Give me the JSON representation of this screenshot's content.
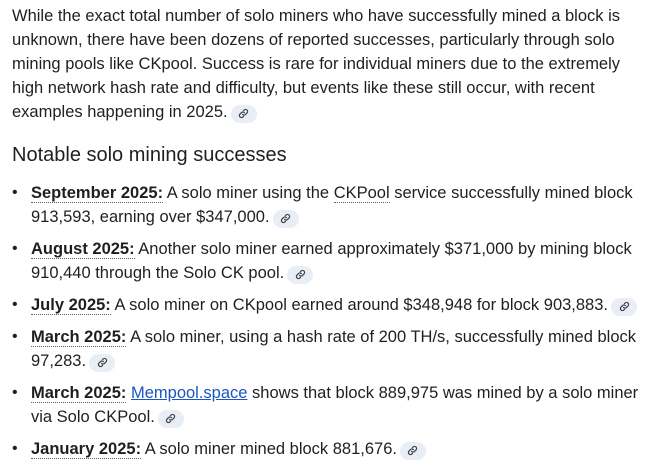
{
  "intro": {
    "text": "While the exact total number of solo miners who have successfully mined a block is unknown, there have been dozens of reported successes, particularly through solo mining pools like CKpool. Success is rare for individual miners due to the extremely high network hash rate and difficulty, but events like these still occur, with recent examples happening in 2025."
  },
  "section": {
    "heading": "Notable solo mining successes"
  },
  "items": [
    {
      "date": "September 2025:",
      "before": " A solo miner using the ",
      "term": "CKPool",
      "after": " service successfully mined block 913,593, earning over $347,000."
    },
    {
      "date": "August 2025:",
      "text": " Another solo miner earned approximately $371,000 by mining block 910,440 through the Solo CK pool."
    },
    {
      "date": "July 2025:",
      "text": " A solo miner on CKpool earned around $348,948 for block 903,883."
    },
    {
      "date": "March 2025:",
      "text": " A solo miner, using a hash rate of 200 TH/s, successfully mined block 97,283."
    },
    {
      "date": "March 2025:",
      "link": "Mempool.space",
      "after": " shows that block 889,975 was mined by a solo miner via Solo CKPool."
    },
    {
      "date": "January 2025:",
      "text": " A solo miner mined block 881,676."
    }
  ],
  "icons": {
    "source_chip": "link-icon",
    "bullet": "bullet-dot"
  },
  "colors": {
    "text": "#1f1f1f",
    "link": "#1a56c4",
    "chip_bg": "#e9eef6"
  }
}
